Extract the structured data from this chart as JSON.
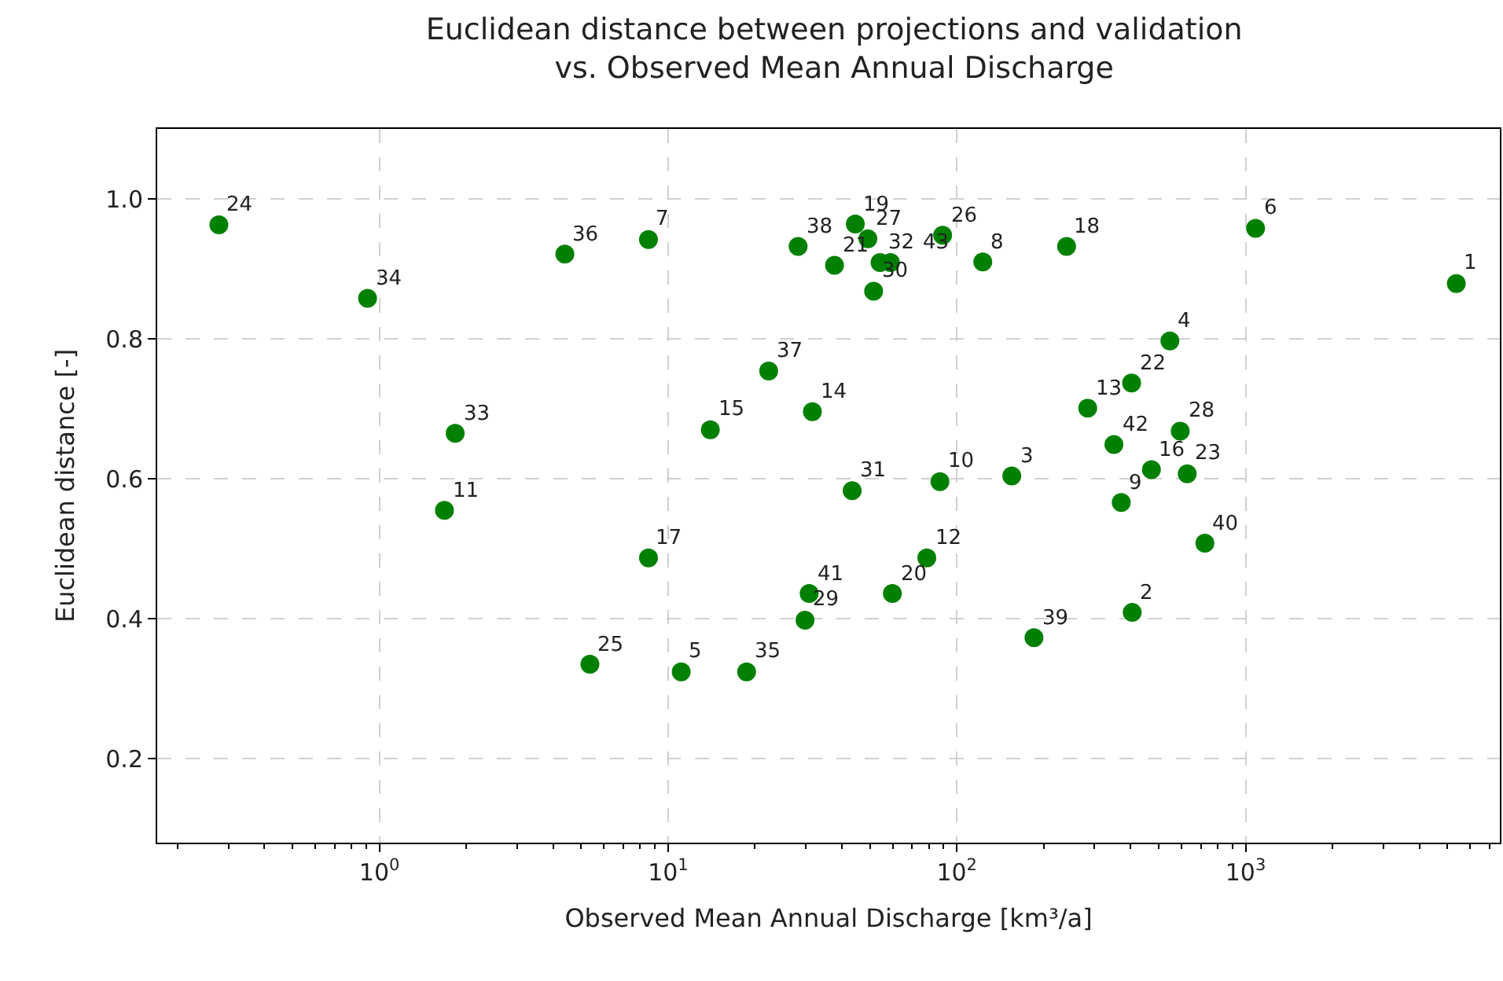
{
  "chart_data": {
    "type": "scatter",
    "title": "Euclidean distance between projections and validation\nvs. Observed Mean Annual Discharge",
    "xlabel": "Observed Mean Annual Discharge [km³/a]",
    "ylabel": "Euclidean distance [-]",
    "x": [
      5370,
      405,
      155,
      547,
      11.1,
      1083,
      8.55,
      123,
      371,
      87.4,
      1.68,
      78.7,
      284,
      31.6,
      14.0,
      472,
      8.55,
      240,
      44.5,
      59.8,
      37.7,
      403,
      628,
      0.278,
      5.36,
      89.3,
      49.2,
      594,
      29.8,
      51.5,
      43.4,
      54.2,
      1.83,
      0.91,
      18.7,
      4.39,
      22.3,
      28.2,
      185,
      723,
      30.8,
      350,
      58.9
    ],
    "values": [
      0.879,
      0.409,
      0.604,
      0.797,
      0.324,
      0.958,
      0.942,
      0.91,
      0.566,
      0.596,
      0.555,
      0.487,
      0.701,
      0.696,
      0.67,
      0.613,
      0.487,
      0.932,
      0.964,
      0.436,
      0.905,
      0.737,
      0.607,
      0.963,
      0.335,
      0.948,
      0.943,
      0.668,
      0.398,
      0.868,
      0.583,
      0.909,
      0.665,
      0.858,
      0.324,
      0.921,
      0.754,
      0.932,
      0.373,
      0.508,
      0.436,
      0.649,
      0.909
    ],
    "annotations": [
      {
        "text": "1",
        "x": 5370,
        "y": 0.879
      },
      {
        "text": "2",
        "x": 405,
        "y": 0.409
      },
      {
        "text": "3",
        "x": 155,
        "y": 0.604
      },
      {
        "text": "4",
        "x": 547,
        "y": 0.797
      },
      {
        "text": "5",
        "x": 11.1,
        "y": 0.324
      },
      {
        "text": "6",
        "x": 1083,
        "y": 0.958
      },
      {
        "text": "7",
        "x": 8.55,
        "y": 0.942
      },
      {
        "text": "8",
        "x": 123,
        "y": 0.91
      },
      {
        "text": "9",
        "x": 371,
        "y": 0.566
      },
      {
        "text": "10",
        "x": 87.4,
        "y": 0.596
      },
      {
        "text": "11",
        "x": 1.68,
        "y": 0.555
      },
      {
        "text": "12",
        "x": 78.7,
        "y": 0.487
      },
      {
        "text": "13",
        "x": 284,
        "y": 0.701
      },
      {
        "text": "14",
        "x": 31.6,
        "y": 0.696
      },
      {
        "text": "15",
        "x": 14.0,
        "y": 0.67
      },
      {
        "text": "16",
        "x": 472,
        "y": 0.613
      },
      {
        "text": "17",
        "x": 8.55,
        "y": 0.487
      },
      {
        "text": "18",
        "x": 240,
        "y": 0.932
      },
      {
        "text": "19",
        "x": 44.5,
        "y": 0.964
      },
      {
        "text": "20",
        "x": 59.8,
        "y": 0.436
      },
      {
        "text": "21",
        "x": 37.7,
        "y": 0.905
      },
      {
        "text": "22",
        "x": 403,
        "y": 0.737
      },
      {
        "text": "23",
        "x": 628,
        "y": 0.607
      },
      {
        "text": "24",
        "x": 0.278,
        "y": 0.963
      },
      {
        "text": "25",
        "x": 5.36,
        "y": 0.335
      },
      {
        "text": "26",
        "x": 89.3,
        "y": 0.948
      },
      {
        "text": "27",
        "x": 49.2,
        "y": 0.943
      },
      {
        "text": "28",
        "x": 594,
        "y": 0.668
      },
      {
        "text": "29",
        "x": 29.8,
        "y": 0.398
      },
      {
        "text": "30",
        "x": 51.5,
        "y": 0.868
      },
      {
        "text": "31",
        "x": 43.4,
        "y": 0.583
      },
      {
        "text": "32",
        "x": 54.2,
        "y": 0.909
      },
      {
        "text": "33",
        "x": 1.83,
        "y": 0.665
      },
      {
        "text": "34",
        "x": 0.91,
        "y": 0.858
      },
      {
        "text": "35",
        "x": 18.7,
        "y": 0.324
      },
      {
        "text": "36",
        "x": 4.39,
        "y": 0.921
      },
      {
        "text": "37",
        "x": 22.3,
        "y": 0.754
      },
      {
        "text": "38",
        "x": 28.2,
        "y": 0.932
      },
      {
        "text": "39",
        "x": 185,
        "y": 0.373
      },
      {
        "text": "40",
        "x": 723,
        "y": 0.508
      },
      {
        "text": "41",
        "x": 30.8,
        "y": 0.436
      },
      {
        "text": "42",
        "x": 350,
        "y": 0.649
      },
      {
        "text": "43",
        "x": 58.9,
        "y": 0.909
      }
    ],
    "color": "#008000",
    "marker": "circle",
    "log": "x",
    "grid": true,
    "xlim": [
      0.17,
      7600
    ],
    "xticks": [
      {
        "value": 1,
        "label": "10$^{0}$"
      },
      {
        "value": 10,
        "label": "10$^{1}$"
      },
      {
        "value": 100,
        "label": "10$^{2}$"
      },
      {
        "value": 1000,
        "label": "10$^{3}$"
      }
    ],
    "ylim": [
      0.08,
      1.1
    ],
    "yticks": [
      {
        "value": 0.2,
        "label": "0.2"
      },
      {
        "value": 0.4,
        "label": "0.4"
      },
      {
        "value": 0.6,
        "label": "0.6"
      },
      {
        "value": 0.8,
        "label": "0.8"
      },
      {
        "value": 1.0,
        "label": "1.0"
      }
    ]
  }
}
